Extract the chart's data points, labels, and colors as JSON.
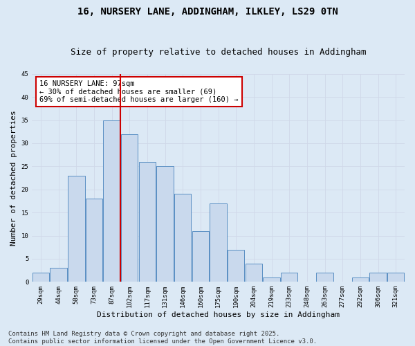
{
  "title_line1": "16, NURSERY LANE, ADDINGHAM, ILKLEY, LS29 0TN",
  "title_line2": "Size of property relative to detached houses in Addingham",
  "xlabel": "Distribution of detached houses by size in Addingham",
  "ylabel": "Number of detached properties",
  "bin_labels": [
    "29sqm",
    "44sqm",
    "58sqm",
    "73sqm",
    "87sqm",
    "102sqm",
    "117sqm",
    "131sqm",
    "146sqm",
    "160sqm",
    "175sqm",
    "190sqm",
    "204sqm",
    "219sqm",
    "233sqm",
    "248sqm",
    "263sqm",
    "277sqm",
    "292sqm",
    "306sqm",
    "321sqm"
  ],
  "values": [
    2,
    3,
    23,
    18,
    35,
    32,
    26,
    25,
    19,
    11,
    17,
    7,
    4,
    1,
    2,
    0,
    2,
    0,
    1,
    2,
    2
  ],
  "bar_color": "#c9d9ed",
  "bar_edge_color": "#5a8fc3",
  "grid_color": "#d0d8e8",
  "background_color": "#dce9f5",
  "vline_bin_index": 4.5,
  "vline_color": "#cc0000",
  "annotation_text": "16 NURSERY LANE: 97sqm\n← 30% of detached houses are smaller (69)\n69% of semi-detached houses are larger (160) →",
  "annotation_box_color": "#ffffff",
  "annotation_box_edge": "#cc0000",
  "ylim": [
    0,
    45
  ],
  "yticks": [
    0,
    5,
    10,
    15,
    20,
    25,
    30,
    35,
    40,
    45
  ],
  "footer_line1": "Contains HM Land Registry data © Crown copyright and database right 2025.",
  "footer_line2": "Contains public sector information licensed under the Open Government Licence v3.0.",
  "title_fontsize": 10,
  "subtitle_fontsize": 9,
  "axis_label_fontsize": 8,
  "tick_fontsize": 6.5,
  "annotation_fontsize": 7.5,
  "footer_fontsize": 6.5
}
